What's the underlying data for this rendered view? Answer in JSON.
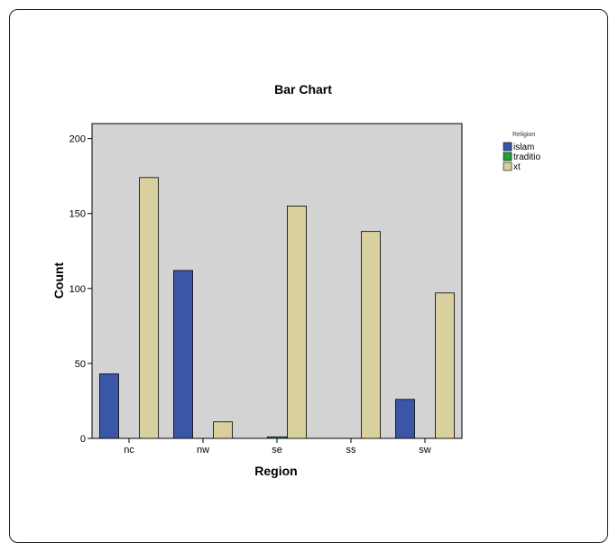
{
  "chart_data": {
    "type": "bar",
    "title": "Bar Chart",
    "xlabel": "Region",
    "ylabel": "Count",
    "categories": [
      "nc",
      "nw",
      "se",
      "ss",
      "sw"
    ],
    "ylim": [
      0,
      210
    ],
    "yticks": [
      0,
      50,
      100,
      150,
      200
    ],
    "grid": false,
    "legend": {
      "title": "Religion",
      "placement": "right"
    },
    "plot_background": "#d3d3d3",
    "series": [
      {
        "name": "islam",
        "color": "#3b55a8",
        "values": [
          43,
          112,
          0,
          0,
          26
        ]
      },
      {
        "name": "traditio",
        "color": "#23a13a",
        "values": [
          0,
          0,
          1,
          0,
          0
        ]
      },
      {
        "name": "xt",
        "color": "#d8d09e",
        "values": [
          174,
          11,
          155,
          138,
          97
        ]
      }
    ]
  }
}
